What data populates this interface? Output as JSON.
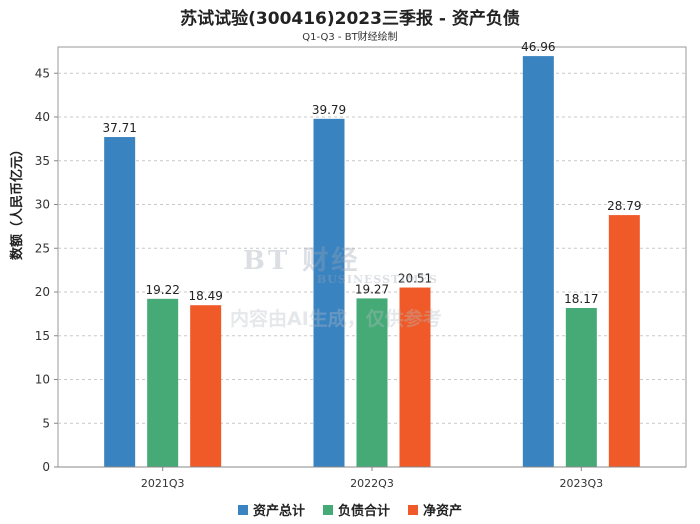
{
  "header": {
    "title": "苏试试验(300416)2023三季报 - 资产负债",
    "subtitle": "Q1-Q3 - BT财经绘制"
  },
  "watermark": {
    "main": "BT 财经",
    "sub": "BUSINESSTIMES",
    "note": "内容由AI生成，仅供参考"
  },
  "chart_data": {
    "type": "bar",
    "categories": [
      "2021Q3",
      "2022Q3",
      "2023Q3"
    ],
    "series": [
      {
        "name": "资产总计",
        "values": [
          37.71,
          39.79,
          46.96
        ],
        "color": "#3a83c1"
      },
      {
        "name": "负债合计",
        "values": [
          19.22,
          19.27,
          18.17
        ],
        "color": "#46aa77"
      },
      {
        "name": "净资产",
        "values": [
          18.49,
          20.51,
          28.79
        ],
        "color": "#f05a28"
      }
    ],
    "ylabel": "数额（人民币亿元）",
    "ylim": [
      0,
      48
    ],
    "yticks": [
      0,
      5,
      10,
      15,
      20,
      25,
      30,
      35,
      40,
      45
    ],
    "grid": true,
    "legend_position": "bottom"
  }
}
